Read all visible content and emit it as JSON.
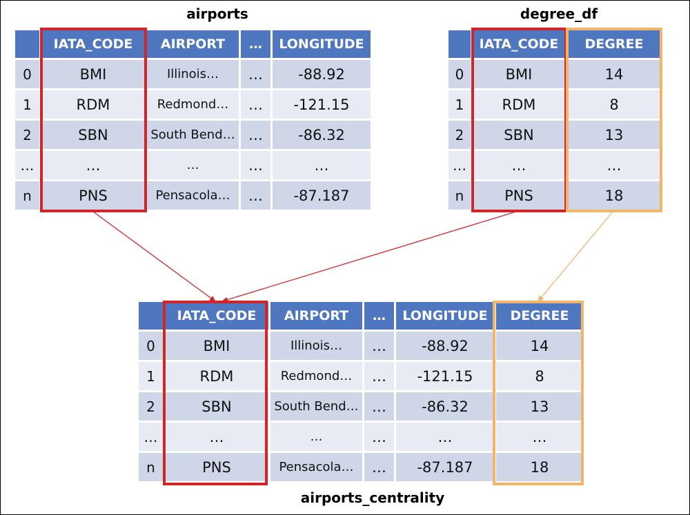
{
  "colors": {
    "header": "#4f77c0",
    "row_dark": "#cfd6e8",
    "row_light": "#e8ebf4",
    "highlight_red": "#d32428",
    "highlight_orange": "#f0b568",
    "arrow_red": "#d32428",
    "arrow_orange": "#f0b568"
  },
  "airports": {
    "title": "airports",
    "headers": [
      "",
      "IATA_CODE",
      "AIRPORT",
      "…",
      "LONGITUDE"
    ],
    "rows": [
      [
        "0",
        "BMI",
        "Illinois…",
        "…",
        "-88.92"
      ],
      [
        "1",
        "RDM",
        "Redmond…",
        "…",
        "-121.15"
      ],
      [
        "2",
        "SBN",
        "South Bend…",
        "…",
        "-86.32"
      ],
      [
        "…",
        "…",
        "…",
        "…",
        "…"
      ],
      [
        "n",
        "PNS",
        "Pensacola…",
        "…",
        "-87.187"
      ]
    ]
  },
  "degree_df": {
    "title": "degree_df",
    "headers": [
      "",
      "IATA_CODE",
      "DEGREE"
    ],
    "rows": [
      [
        "0",
        "BMI",
        "14"
      ],
      [
        "1",
        "RDM",
        "8"
      ],
      [
        "2",
        "SBN",
        "13"
      ],
      [
        "…",
        "…",
        "…"
      ],
      [
        "n",
        "PNS",
        "18"
      ]
    ]
  },
  "airports_centrality": {
    "title": "airports_centrality",
    "headers": [
      "",
      "IATA_CODE",
      "AIRPORT",
      "…",
      "LONGITUDE",
      "DEGREE"
    ],
    "rows": [
      [
        "0",
        "BMI",
        "Illinois…",
        "…",
        "-88.92",
        "14"
      ],
      [
        "1",
        "RDM",
        "Redmond…",
        "…",
        "-121.15",
        "8"
      ],
      [
        "2",
        "SBN",
        "South Bend…",
        "…",
        "-86.32",
        "13"
      ],
      [
        "…",
        "…",
        "…",
        "…",
        "…",
        "…"
      ],
      [
        "n",
        "PNS",
        "Pensacola…",
        "…",
        "-87.187",
        "18"
      ]
    ]
  }
}
